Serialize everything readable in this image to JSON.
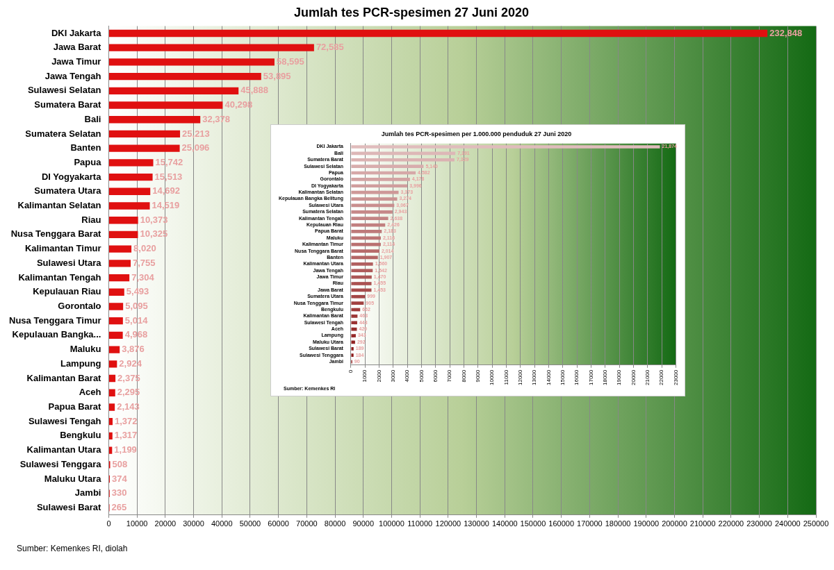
{
  "chart_data": [
    {
      "type": "bar",
      "orientation": "horizontal",
      "title": "Jumlah tes PCR-spesimen 27 Juni 2020",
      "categories": [
        "DKI Jakarta",
        "Jawa Barat",
        "Jawa Timur",
        "Jawa Tengah",
        "Sulawesi Selatan",
        "Sumatera Barat",
        "Bali",
        "Sumatera Selatan",
        "Banten",
        "Papua",
        "DI Yogyakarta",
        "Sumatera Utara",
        "Kalimantan Selatan",
        "Riau",
        "Nusa Tenggara Barat",
        "Kalimantan Timur",
        "Sulawesi Utara",
        "Kalimantan Tengah",
        "Kepulauan Riau",
        "Gorontalo",
        "Nusa Tenggara Timur",
        "Kepulauan Bangka...",
        "Maluku",
        "Lampung",
        "Kalimantan Barat",
        "Aceh",
        "Papua Barat",
        "Sulawesi Tengah",
        "Bengkulu",
        "Kalimantan Utara",
        "Sulawesi Tenggara",
        "Maluku Utara",
        "Jambi",
        "Sulawesi Barat"
      ],
      "values": [
        232848,
        72585,
        58595,
        53895,
        45888,
        40298,
        32378,
        25213,
        25096,
        15742,
        15513,
        14692,
        14519,
        10373,
        10325,
        8020,
        7755,
        7304,
        5493,
        5095,
        5014,
        4968,
        3876,
        2924,
        2375,
        2295,
        2143,
        1372,
        1317,
        1199,
        508,
        374,
        330,
        265
      ],
      "color": "#e01010",
      "value_labels": [
        "232,848",
        "72,585",
        "58,595",
        "53,895",
        "45,888",
        "40,298",
        "32,378",
        "25,213",
        "25,096",
        "15,742",
        "15,513",
        "14,692",
        "14,519",
        "10,373",
        "10,325",
        "8,020",
        "7,755",
        "7,304",
        "5,493",
        "5,095",
        "5,014",
        "4,968",
        "3,876",
        "2,924",
        "2,375",
        "2,295",
        "2,143",
        "1,372",
        "1,317",
        "1,199",
        "508",
        "374",
        "330",
        "265"
      ],
      "xlim": [
        0,
        250000
      ],
      "xticks": [
        0,
        10000,
        20000,
        30000,
        40000,
        50000,
        60000,
        70000,
        80000,
        90000,
        100000,
        110000,
        120000,
        130000,
        140000,
        150000,
        160000,
        170000,
        180000,
        190000,
        200000,
        210000,
        220000,
        230000,
        240000,
        250000
      ],
      "grid": "x",
      "annotations": [
        "Sumber: Kemenkes RI, diolah"
      ]
    },
    {
      "type": "bar",
      "orientation": "horizontal",
      "title": "Jumlah tes PCR-spesimen per 1.000.000 penduduk 27 Juni 2020",
      "categories": [
        "DKI Jakarta",
        "Bali",
        "Sumatera Barat",
        "Sulawesi Selatan",
        "Papua",
        "Gorontalo",
        "DI Yogyakarta",
        "Kalimantan Selatan",
        "Kepulauan Bangka Belitung",
        "Sulawesi Utara",
        "Sumatera Selatan",
        "Kalimantan Tengah",
        "Kepulauan Riau",
        "Papua Barat",
        "Maluku",
        "Kalimantan Timur",
        "Nusa Tenggara Barat",
        "Banten",
        "Kalimantan Utara",
        "Jawa Tengah",
        "Jawa Timur",
        "Riau",
        "Jawa Barat",
        "Sumatera Utara",
        "Nusa Tenggara Timur",
        "Bengkulu",
        "Kalimantan Barat",
        "Sulawesi Tengah",
        "Aceh",
        "Lampung",
        "Maluku Utara",
        "Sulawesi Barat",
        "Sulawesi Tenggara",
        "Jambi"
      ],
      "values": [
        21874,
        7391,
        7329,
        5140,
        4582,
        4178,
        3996,
        3373,
        3274,
        3067,
        2943,
        2638,
        2426,
        2183,
        2116,
        2114,
        2014,
        1907,
        1560,
        1542,
        1470,
        1455,
        1453,
        999,
        905,
        652,
        463,
        443,
        420,
        343,
        292,
        189,
        184,
        90
      ],
      "colors": [
        "#e0bcbc",
        "#ddb7b7",
        "#dbb2b2",
        "#d8adad",
        "#d6a8a8",
        "#d3a3a3",
        "#d09d9d",
        "#ce9898",
        "#cb9393",
        "#c98e8e",
        "#c68989",
        "#c38484",
        "#c17f7f",
        "#be7a7a",
        "#bc7575",
        "#b97070",
        "#b76b6b",
        "#b46565",
        "#b16060",
        "#af5b5b",
        "#ac5656",
        "#aa5151",
        "#a74c4c",
        "#a44747",
        "#a24242",
        "#9f3d3d",
        "#9d3838",
        "#9a3232",
        "#972d2d",
        "#952828",
        "#922323",
        "#901e1e",
        "#8d1919",
        "#8b1414"
      ],
      "value_labels": [
        "21,874",
        "7,391",
        "7,329",
        "5,140",
        "4,582",
        "4,178",
        "3,996",
        "3,373",
        "3,274",
        "3,067",
        "2,943",
        "2,638",
        "2,426",
        "2,183",
        "2,116",
        "2,114",
        "2,014",
        "1,907",
        "1,560",
        "1,542",
        "1,470",
        "1,455",
        "1,453",
        "999",
        "905",
        "652",
        "463",
        "443",
        "420",
        "343",
        "292",
        "189",
        "184",
        "90"
      ],
      "xlim": [
        0,
        23000
      ],
      "xticks": [
        0,
        1000,
        2000,
        3000,
        4000,
        5000,
        6000,
        7000,
        8000,
        9000,
        10000,
        11000,
        12000,
        13000,
        14000,
        15000,
        16000,
        17000,
        18000,
        19000,
        20000,
        21000,
        22000,
        23000
      ],
      "grid": "x",
      "annotations": [
        "Sumber: Kemenkes RI"
      ]
    }
  ]
}
